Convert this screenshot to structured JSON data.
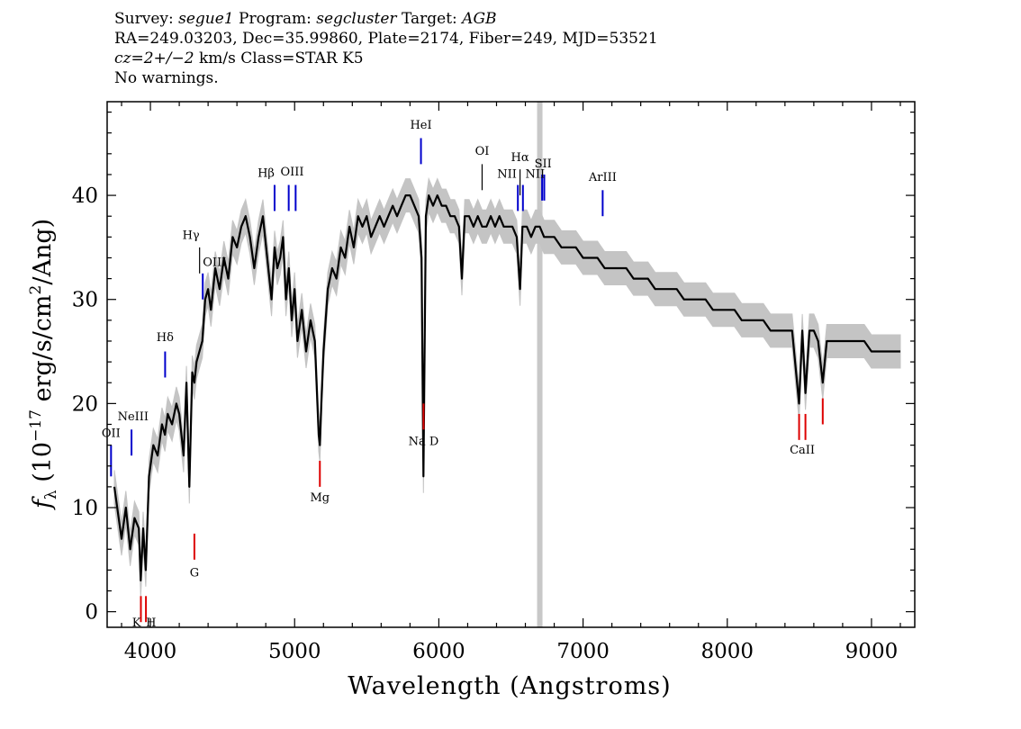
{
  "header": {
    "survey_label": "Survey:",
    "survey": "segue1",
    "program_label": "Program:",
    "program": "segcluster",
    "target_label": "Target:",
    "target": "AGB",
    "line2": "RA=249.03203, Dec=35.99860, Plate=2174, Fiber=249, MJD=53521",
    "cz": "cz=2+/−2",
    "cz_rest": " km/s Class=STAR K5",
    "line4": "No warnings."
  },
  "chart_data": {
    "type": "line",
    "xlabel": "Wavelength (Angstroms)",
    "ylabel": "fλ (10⁻¹⁷ erg/s/cm²/Ang)",
    "xlim": [
      3700,
      9300
    ],
    "ylim": [
      -1.5,
      49
    ],
    "xticks": [
      4000,
      5000,
      6000,
      7000,
      8000,
      9000
    ],
    "yticks": [
      0,
      10,
      20,
      30,
      40
    ],
    "grid": false,
    "colors": {
      "flux": "#000000",
      "error_band": "#c4c4c4",
      "masked_band": "#c8c8c8",
      "emission": "#0000cc",
      "absorption": "#dd0000",
      "neutral": "#000000"
    },
    "masked_wavelength": 6700,
    "series": [
      {
        "wavelength": [
          3750,
          3780,
          3800,
          3830,
          3860,
          3890,
          3920,
          3933,
          3950,
          3968,
          3990,
          4020,
          4050,
          4080,
          4101,
          4120,
          4150,
          4180,
          4200,
          4230,
          4250,
          4270,
          4290,
          4305,
          4320,
          4340,
          4360,
          4380,
          4400,
          4420,
          4450,
          4480,
          4510,
          4540,
          4570,
          4600,
          4630,
          4660,
          4690,
          4720,
          4750,
          4780,
          4810,
          4840,
          4861,
          4880,
          4900,
          4920,
          4940,
          4960,
          4980,
          5000,
          5020,
          5050,
          5080,
          5110,
          5140,
          5167,
          5175,
          5185,
          5200,
          5230,
          5260,
          5290,
          5320,
          5350,
          5380,
          5410,
          5440,
          5470,
          5500,
          5530,
          5560,
          5590,
          5620,
          5650,
          5680,
          5710,
          5740,
          5770,
          5800,
          5830,
          5860,
          5880,
          5893,
          5910,
          5930,
          5960,
          5990,
          6020,
          6050,
          6080,
          6110,
          6140,
          6160,
          6180,
          6210,
          6240,
          6270,
          6300,
          6330,
          6360,
          6390,
          6420,
          6450,
          6480,
          6510,
          6540,
          6563,
          6580,
          6610,
          6640,
          6670,
          6700,
          6730,
          6760,
          6800,
          6850,
          6900,
          6950,
          7000,
          7050,
          7100,
          7150,
          7200,
          7250,
          7300,
          7350,
          7400,
          7450,
          7500,
          7550,
          7600,
          7650,
          7700,
          7750,
          7800,
          7850,
          7900,
          7950,
          8000,
          8050,
          8100,
          8150,
          8200,
          8250,
          8300,
          8350,
          8400,
          8450,
          8498,
          8520,
          8542,
          8570,
          8600,
          8630,
          8662,
          8690,
          8720,
          8760,
          8800,
          8850,
          8900,
          8950,
          9000,
          9050,
          9100,
          9150,
          9200
        ],
        "flux": [
          12,
          9,
          7,
          10,
          6,
          9,
          8,
          3,
          8,
          4,
          13,
          16,
          15,
          18,
          17,
          19,
          18,
          20,
          19,
          15,
          22,
          12,
          23,
          22,
          24,
          25,
          26,
          30,
          31,
          29,
          33,
          31,
          34,
          32,
          36,
          35,
          37,
          38,
          36,
          33,
          36,
          38,
          34,
          30,
          35,
          33,
          34,
          36,
          30,
          33,
          28,
          31,
          26,
          29,
          25,
          28,
          26,
          17,
          16,
          20,
          25,
          31,
          33,
          32,
          35,
          34,
          37,
          35,
          38,
          37,
          38,
          36,
          37,
          38,
          37,
          38,
          39,
          38,
          39,
          40,
          40,
          39,
          38,
          34,
          13,
          38,
          40,
          39,
          40,
          39,
          39,
          38,
          38,
          37,
          32,
          38,
          38,
          37,
          38,
          37,
          37,
          38,
          37,
          38,
          37,
          37,
          37,
          36,
          31,
          37,
          37,
          36,
          37,
          37,
          36,
          36,
          36,
          35,
          35,
          35,
          34,
          34,
          34,
          33,
          33,
          33,
          33,
          32,
          32,
          32,
          31,
          31,
          31,
          31,
          30,
          30,
          30,
          30,
          29,
          29,
          29,
          29,
          28,
          28,
          28,
          28,
          27,
          27,
          27,
          27,
          20,
          27,
          21,
          27,
          27,
          26,
          22,
          26,
          26,
          26,
          26,
          26,
          26,
          26,
          25,
          25,
          25,
          25,
          25
        ]
      }
    ],
    "line_markers": [
      {
        "label": "OII",
        "wavelength": 3727,
        "type": "emission",
        "y_from": 13,
        "y_to": 16
      },
      {
        "label": "NeIII",
        "wavelength": 3869,
        "type": "emission",
        "y_from": 15,
        "y_to": 17.5
      },
      {
        "label": "Hδ",
        "wavelength": 4102,
        "type": "emission",
        "y_from": 22.5,
        "y_to": 25
      },
      {
        "label": "Hγ",
        "wavelength": 4341,
        "type": "neutral",
        "y_from": 32.5,
        "y_to": 35
      },
      {
        "label": "OIII",
        "wavelength": 4363,
        "type": "emission",
        "y_from": 30,
        "y_to": 32.5
      },
      {
        "label": "Hβ",
        "wavelength": 4861,
        "type": "emission",
        "y_from": 38.5,
        "y_to": 41
      },
      {
        "label": "OIII",
        "wavelength": 4959,
        "type": "emission",
        "y_from": 38.5,
        "y_to": 41
      },
      {
        "label": "OIII",
        "wavelength": 5007,
        "type": "emission",
        "y_from": 38.5,
        "y_to": 41
      },
      {
        "label": "HeI",
        "wavelength": 5876,
        "type": "emission",
        "y_from": 43,
        "y_to": 45.5
      },
      {
        "label": "OI",
        "wavelength": 6300,
        "type": "neutral",
        "y_from": 40.5,
        "y_to": 43
      },
      {
        "label": "NII",
        "wavelength": 6548,
        "type": "emission",
        "y_from": 38.5,
        "y_to": 41
      },
      {
        "label": "Hα",
        "wavelength": 6563,
        "type": "neutral",
        "y_from": 40,
        "y_to": 42.5
      },
      {
        "label": "NII",
        "wavelength": 6583,
        "type": "emission",
        "y_from": 38.5,
        "y_to": 41
      },
      {
        "label": "SII",
        "wavelength": 6716,
        "type": "emission",
        "y_from": 39.5,
        "y_to": 42
      },
      {
        "label": "SII",
        "wavelength": 6731,
        "type": "emission",
        "y_from": 39.5,
        "y_to": 42
      },
      {
        "label": "ArIII",
        "wavelength": 7136,
        "type": "emission",
        "y_from": 38,
        "y_to": 40.5
      },
      {
        "label": "K",
        "wavelength": 3934,
        "type": "absorption",
        "y_from": -1,
        "y_to": 1.5
      },
      {
        "label": "H",
        "wavelength": 3969,
        "type": "absorption",
        "y_from": -1,
        "y_to": 1.5
      },
      {
        "label": "G",
        "wavelength": 4305,
        "type": "absorption",
        "y_from": 5,
        "y_to": 7.5
      },
      {
        "label": "Mg",
        "wavelength": 5175,
        "type": "absorption",
        "y_from": 12,
        "y_to": 14.5
      },
      {
        "label": "Na",
        "wavelength": 5894,
        "type": "absorption",
        "y_from": 17.5,
        "y_to": 20
      },
      {
        "label": "CaII",
        "wavelength": 8498,
        "type": "absorption",
        "y_from": 16.5,
        "y_to": 19
      },
      {
        "label": "CaII",
        "wavelength": 8542,
        "type": "absorption",
        "y_from": 16.5,
        "y_to": 19
      },
      {
        "label": "CaII",
        "wavelength": 8662,
        "type": "absorption",
        "y_from": 18,
        "y_to": 20.5
      }
    ],
    "marker_labels": [
      {
        "text": "OII",
        "wavelength": 3727,
        "y": 16.8,
        "anchor": "middle"
      },
      {
        "text": "NeIII",
        "wavelength": 3880,
        "y": 18.4,
        "anchor": "middle"
      },
      {
        "text": "Hδ",
        "wavelength": 4102,
        "y": 26,
        "anchor": "middle"
      },
      {
        "text": "Hγ",
        "wavelength": 4341,
        "y": 35.8,
        "anchor": "end"
      },
      {
        "text": "OIII",
        "wavelength": 4363,
        "y": 33.2,
        "anchor": "start"
      },
      {
        "text": "Hβ",
        "wavelength": 4861,
        "y": 41.8,
        "anchor": "end"
      },
      {
        "text": "OIII",
        "wavelength": 4983,
        "y": 41.9,
        "anchor": "middle"
      },
      {
        "text": "HeI",
        "wavelength": 5876,
        "y": 46.4,
        "anchor": "middle"
      },
      {
        "text": "OI",
        "wavelength": 6300,
        "y": 43.9,
        "anchor": "middle"
      },
      {
        "text": "NII",
        "wavelength": 6540,
        "y": 41.7,
        "anchor": "end"
      },
      {
        "text": "Hα",
        "wavelength": 6563,
        "y": 43.3,
        "anchor": "middle"
      },
      {
        "text": "NII",
        "wavelength": 6600,
        "y": 41.7,
        "anchor": "start"
      },
      {
        "text": "SII",
        "wavelength": 6723,
        "y": 42.7,
        "anchor": "middle"
      },
      {
        "text": "ArIII",
        "wavelength": 7136,
        "y": 41.4,
        "anchor": "middle"
      },
      {
        "text": "K",
        "wavelength": 3934,
        "y": -1.4,
        "anchor": "end"
      },
      {
        "text": "H",
        "wavelength": 3969,
        "y": -1.4,
        "anchor": "start"
      },
      {
        "text": "G",
        "wavelength": 4305,
        "y": 3.4,
        "anchor": "middle"
      },
      {
        "text": "Mg",
        "wavelength": 5175,
        "y": 10.6,
        "anchor": "middle"
      },
      {
        "text": "Na  D",
        "wavelength": 5894,
        "y": 16,
        "anchor": "middle"
      },
      {
        "text": "CaII",
        "wavelength": 8520,
        "y": 15.2,
        "anchor": "middle"
      }
    ]
  }
}
